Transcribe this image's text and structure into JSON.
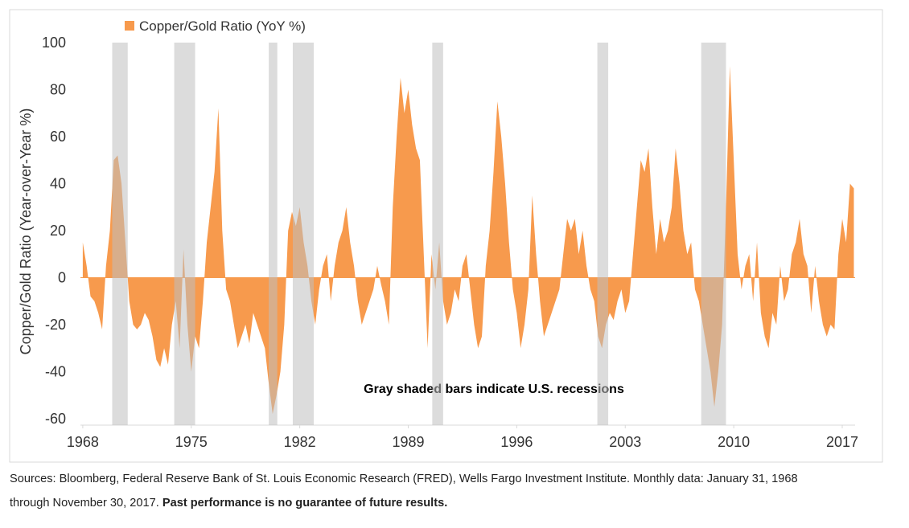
{
  "chart_data": {
    "type": "area",
    "legend_label": "Copper/Gold Ratio (YoY %)",
    "y_label": "Copper/Gold Ratio (Year-over-Year %)",
    "annotation": "Gray shaded bars indicate U.S. recessions",
    "source": [
      "Sources: Bloomberg, Federal Reserve Bank of St. Louis Economic Research (FRED), Wells Fargo Investment Institute. Monthly data: January 31, 1968",
      "through November 30, 2017."
    ],
    "source_bold": "Past performance is no guarantee of future results.",
    "xlim": [
      1967.85,
      2017.83
    ],
    "xticks": [
      1968,
      1975,
      1982,
      1989,
      1996,
      2003,
      2010,
      2017
    ],
    "ylim": [
      -60,
      100
    ],
    "yticks": [
      -60,
      -40,
      -20,
      0,
      20,
      40,
      60,
      80,
      100
    ],
    "grid": false,
    "shaded_color": "#bfbfbf",
    "shaded_periods": [
      [
        1969.9,
        1970.9
      ],
      [
        1973.9,
        1975.25
      ],
      [
        1980.0,
        1980.55
      ],
      [
        1981.55,
        1982.9
      ],
      [
        1990.55,
        1991.25
      ],
      [
        2001.2,
        2001.9
      ],
      [
        2007.9,
        2009.5
      ]
    ],
    "x": [
      1968,
      1968.25,
      1968.5,
      1968.75,
      1969,
      1969.25,
      1969.5,
      1969.75,
      1970,
      1970.25,
      1970.5,
      1970.75,
      1971,
      1971.25,
      1971.5,
      1971.75,
      1972,
      1972.25,
      1972.5,
      1972.75,
      1973,
      1973.25,
      1973.5,
      1973.75,
      1974,
      1974.25,
      1974.5,
      1974.75,
      1975,
      1975.25,
      1975.5,
      1975.75,
      1976,
      1976.25,
      1976.5,
      1976.75,
      1977,
      1977.25,
      1977.5,
      1977.75,
      1978,
      1978.25,
      1978.5,
      1978.75,
      1979,
      1979.25,
      1979.5,
      1979.75,
      1980,
      1980.25,
      1980.5,
      1980.75,
      1981,
      1981.25,
      1981.5,
      1981.75,
      1982,
      1982.25,
      1982.5,
      1982.75,
      1983,
      1983.25,
      1983.5,
      1983.75,
      1984,
      1984.25,
      1984.5,
      1984.75,
      1985,
      1985.25,
      1985.5,
      1985.75,
      1986,
      1986.25,
      1986.5,
      1986.75,
      1987,
      1987.25,
      1987.5,
      1987.75,
      1988,
      1988.25,
      1988.5,
      1988.75,
      1989,
      1989.25,
      1989.5,
      1989.75,
      1990,
      1990.25,
      1990.5,
      1990.75,
      1991,
      1991.25,
      1991.5,
      1991.75,
      1992,
      1992.25,
      1992.5,
      1992.75,
      1993,
      1993.25,
      1993.5,
      1993.75,
      1994,
      1994.25,
      1994.5,
      1994.75,
      1995,
      1995.25,
      1995.5,
      1995.75,
      1996,
      1996.25,
      1996.5,
      1996.75,
      1997,
      1997.25,
      1997.5,
      1997.75,
      1998,
      1998.25,
      1998.5,
      1998.75,
      1999,
      1999.25,
      1999.5,
      1999.75,
      2000,
      2000.25,
      2000.5,
      2000.75,
      2001,
      2001.25,
      2001.5,
      2001.75,
      2002,
      2002.25,
      2002.5,
      2002.75,
      2003,
      2003.25,
      2003.5,
      2003.75,
      2004,
      2004.25,
      2004.5,
      2004.75,
      2005,
      2005.25,
      2005.5,
      2005.75,
      2006,
      2006.25,
      2006.5,
      2006.75,
      2007,
      2007.25,
      2007.5,
      2007.75,
      2008,
      2008.25,
      2008.5,
      2008.75,
      2009,
      2009.25,
      2009.5,
      2009.75,
      2010,
      2010.25,
      2010.5,
      2010.75,
      2011,
      2011.25,
      2011.5,
      2011.75,
      2012,
      2012.25,
      2012.5,
      2012.75,
      2013,
      2013.25,
      2013.5,
      2013.75,
      2014,
      2014.25,
      2014.5,
      2014.75,
      2015,
      2015.25,
      2015.5,
      2015.75,
      2016,
      2016.25,
      2016.5,
      2016.75,
      2017,
      2017.25,
      2017.5,
      2017.75
    ],
    "series": [
      {
        "name": "Copper/Gold Ratio (YoY %)",
        "color": "#f79a4d",
        "values": [
          15,
          5,
          -8,
          -10,
          -15,
          -22,
          5,
          20,
          50,
          52,
          40,
          15,
          -10,
          -20,
          -22,
          -20,
          -15,
          -18,
          -25,
          -35,
          -38,
          -30,
          -37,
          -20,
          -10,
          -30,
          12,
          -20,
          -40,
          -25,
          -30,
          -10,
          15,
          30,
          45,
          72,
          20,
          -5,
          -10,
          -20,
          -30,
          -25,
          -20,
          -28,
          -15,
          -20,
          -25,
          -30,
          -45,
          -58,
          -50,
          -40,
          -20,
          20,
          28,
          22,
          30,
          15,
          5,
          -10,
          -20,
          -5,
          5,
          10,
          -10,
          5,
          15,
          20,
          30,
          15,
          5,
          -10,
          -20,
          -15,
          -10,
          -5,
          5,
          -3,
          -10,
          -20,
          30,
          60,
          85,
          70,
          80,
          65,
          55,
          50,
          10,
          -30,
          10,
          -5,
          15,
          -10,
          -20,
          -15,
          -5,
          -10,
          5,
          10,
          -5,
          -20,
          -30,
          -25,
          5,
          20,
          45,
          75,
          60,
          40,
          15,
          -5,
          -15,
          -30,
          -20,
          -5,
          35,
          10,
          -10,
          -25,
          -20,
          -15,
          -10,
          -5,
          10,
          25,
          20,
          25,
          10,
          20,
          5,
          -5,
          -10,
          -25,
          -30,
          -20,
          -15,
          -18,
          -10,
          -5,
          -15,
          -10,
          10,
          30,
          50,
          45,
          55,
          30,
          10,
          25,
          15,
          20,
          30,
          55,
          40,
          20,
          10,
          15,
          -5,
          -10,
          -20,
          -30,
          -40,
          -55,
          -40,
          -20,
          30,
          90,
          50,
          10,
          -5,
          5,
          10,
          -10,
          15,
          -15,
          -25,
          -30,
          -15,
          -20,
          5,
          -10,
          -5,
          10,
          15,
          25,
          10,
          5,
          -15,
          5,
          -10,
          -20,
          -25,
          -20,
          -22,
          10,
          25,
          15,
          40,
          38
        ]
      }
    ]
  }
}
